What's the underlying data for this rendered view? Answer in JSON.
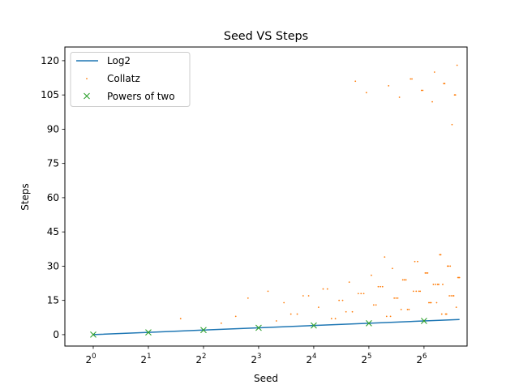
{
  "chart_data": {
    "type": "scatter",
    "title": "Seed VS Steps",
    "xlabel": "Seed",
    "ylabel": "Steps",
    "x_scale": "log2",
    "xlim": [
      0.7,
      110
    ],
    "ylim": [
      -5,
      126
    ],
    "x_ticks": [
      {
        "value": 1,
        "base": "2",
        "exp": "0"
      },
      {
        "value": 2,
        "base": "2",
        "exp": "1"
      },
      {
        "value": 4,
        "base": "2",
        "exp": "2"
      },
      {
        "value": 8,
        "base": "2",
        "exp": "3"
      },
      {
        "value": 16,
        "base": "2",
        "exp": "4"
      },
      {
        "value": 32,
        "base": "2",
        "exp": "5"
      },
      {
        "value": 64,
        "base": "2",
        "exp": "6"
      }
    ],
    "y_ticks": [
      0,
      15,
      30,
      45,
      60,
      75,
      90,
      105,
      120
    ],
    "legend_position": "top-left",
    "colors": {
      "log2": "#1f77b4",
      "collatz": "#ff7f0e",
      "powers": "#2ca02c"
    },
    "series": [
      {
        "name": "Log2",
        "kind": "line",
        "x": [
          1,
          2,
          4,
          8,
          16,
          32,
          64,
          100
        ],
        "y": [
          0,
          1,
          2,
          3,
          4,
          5,
          6,
          6.64
        ]
      },
      {
        "name": "Collatz",
        "kind": "scatter",
        "points": [
          [
            1,
            0
          ],
          [
            2,
            1
          ],
          [
            3,
            7
          ],
          [
            4,
            2
          ],
          [
            5,
            5
          ],
          [
            6,
            8
          ],
          [
            7,
            16
          ],
          [
            8,
            3
          ],
          [
            9,
            19
          ],
          [
            10,
            6
          ],
          [
            11,
            14
          ],
          [
            12,
            9
          ],
          [
            13,
            9
          ],
          [
            14,
            17
          ],
          [
            15,
            17
          ],
          [
            16,
            4
          ],
          [
            17,
            12
          ],
          [
            18,
            20
          ],
          [
            19,
            20
          ],
          [
            20,
            7
          ],
          [
            21,
            7
          ],
          [
            22,
            15
          ],
          [
            23,
            15
          ],
          [
            24,
            10
          ],
          [
            25,
            23
          ],
          [
            26,
            10
          ],
          [
            27,
            111
          ],
          [
            28,
            18
          ],
          [
            29,
            18
          ],
          [
            30,
            18
          ],
          [
            31,
            106
          ],
          [
            32,
            5
          ],
          [
            33,
            26
          ],
          [
            34,
            13
          ],
          [
            35,
            13
          ],
          [
            36,
            21
          ],
          [
            37,
            21
          ],
          [
            38,
            21
          ],
          [
            39,
            34
          ],
          [
            40,
            8
          ],
          [
            41,
            109
          ],
          [
            42,
            8
          ],
          [
            43,
            29
          ],
          [
            44,
            16
          ],
          [
            45,
            16
          ],
          [
            46,
            16
          ],
          [
            47,
            104
          ],
          [
            48,
            11
          ],
          [
            49,
            24
          ],
          [
            50,
            24
          ],
          [
            51,
            24
          ],
          [
            52,
            11
          ],
          [
            53,
            11
          ],
          [
            54,
            112
          ],
          [
            55,
            112
          ],
          [
            56,
            19
          ],
          [
            57,
            32
          ],
          [
            58,
            19
          ],
          [
            59,
            32
          ],
          [
            60,
            19
          ],
          [
            61,
            19
          ],
          [
            62,
            107
          ],
          [
            63,
            107
          ],
          [
            64,
            6
          ],
          [
            65,
            27
          ],
          [
            66,
            27
          ],
          [
            67,
            27
          ],
          [
            68,
            14
          ],
          [
            69,
            14
          ],
          [
            70,
            14
          ],
          [
            71,
            102
          ],
          [
            72,
            22
          ],
          [
            73,
            115
          ],
          [
            74,
            22
          ],
          [
            75,
            14
          ],
          [
            76,
            22
          ],
          [
            77,
            22
          ],
          [
            78,
            35
          ],
          [
            79,
            35
          ],
          [
            80,
            9
          ],
          [
            81,
            22
          ],
          [
            82,
            110
          ],
          [
            83,
            110
          ],
          [
            84,
            9
          ],
          [
            85,
            9
          ],
          [
            86,
            30
          ],
          [
            87,
            30
          ],
          [
            88,
            17
          ],
          [
            89,
            30
          ],
          [
            90,
            17
          ],
          [
            91,
            92
          ],
          [
            92,
            17
          ],
          [
            93,
            17
          ],
          [
            94,
            105
          ],
          [
            95,
            105
          ],
          [
            96,
            12
          ],
          [
            97,
            118
          ],
          [
            98,
            25
          ],
          [
            99,
            25
          ],
          [
            100,
            25
          ]
        ]
      },
      {
        "name": "Powers of two",
        "kind": "markers",
        "x": [
          1,
          2,
          4,
          8,
          16,
          32,
          64
        ],
        "y": [
          0,
          1,
          2,
          3,
          4,
          5,
          6
        ]
      }
    ]
  }
}
